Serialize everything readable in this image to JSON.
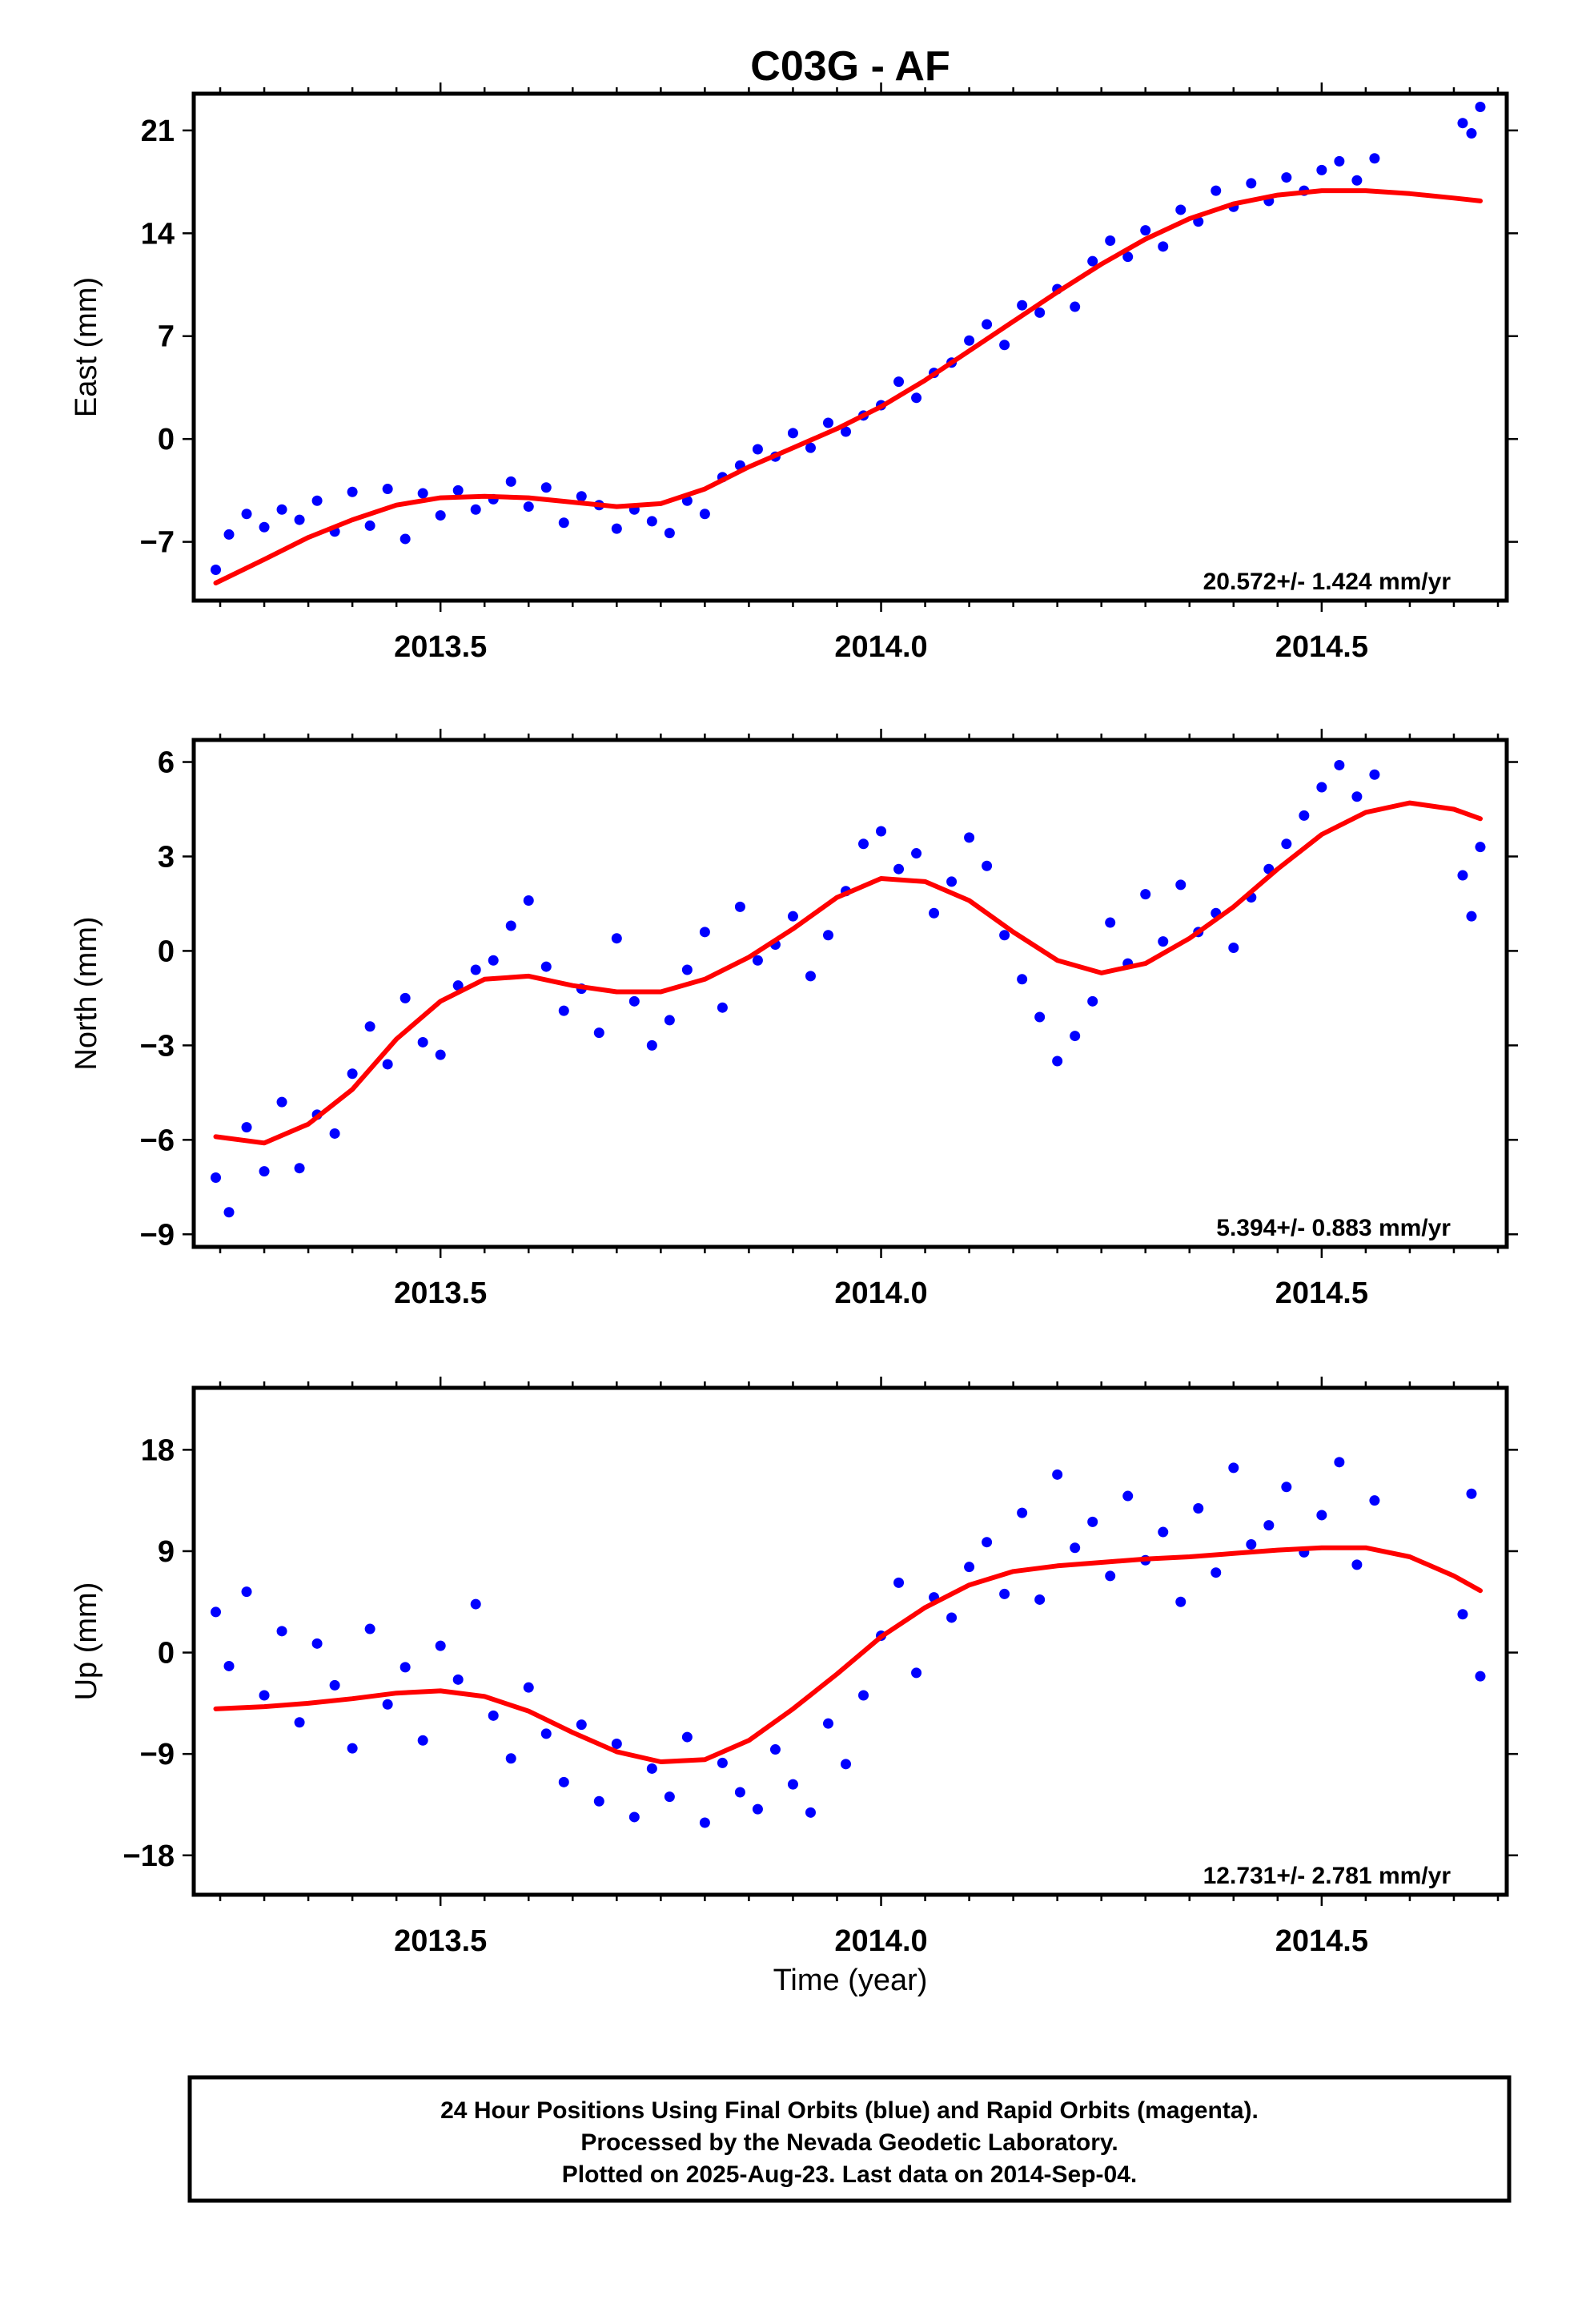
{
  "title": "C03G - AF",
  "caption": {
    "lines": [
      "24 Hour Positions Using Final Orbits (blue) and Rapid Orbits (magenta).",
      "Processed by the Nevada Geodetic Laboratory.",
      "Plotted on 2025-Aug-23. Last data on 2014-Sep-04."
    ]
  },
  "colors": {
    "points": "#0000ff",
    "fit": "#ff0000",
    "frame": "#000000"
  },
  "chart_data": [
    {
      "type": "scatter",
      "ylabel": "East (mm)",
      "xlabel": "",
      "xlim": [
        2013.22,
        2014.71
      ],
      "ylim": [
        -11.0,
        23.5
      ],
      "xticks": [
        2013.5,
        2014.0,
        2014.5
      ],
      "xtick_labels": [
        "2013.5",
        "2014.0",
        "2014.5"
      ],
      "yticks": [
        -7,
        0,
        7,
        14,
        21
      ],
      "ytick_labels": [
        "−7",
        "0",
        "7",
        "14",
        "21"
      ],
      "rate": "20.572+/- 1.424 mm/yr",
      "fit": {
        "x": [
          2013.245,
          2013.3,
          2013.35,
          2013.4,
          2013.45,
          2013.5,
          2013.55,
          2013.6,
          2013.65,
          2013.7,
          2013.75,
          2013.8,
          2013.85,
          2013.9,
          2013.95,
          2014.0,
          2014.05,
          2014.1,
          2014.15,
          2014.2,
          2014.25,
          2014.3,
          2014.35,
          2014.4,
          2014.45,
          2014.5,
          2014.55,
          2014.6,
          2014.65,
          2014.68
        ],
        "y": [
          -9.8,
          -8.2,
          -6.7,
          -5.5,
          -4.5,
          -4.0,
          -3.9,
          -4.0,
          -4.3,
          -4.6,
          -4.4,
          -3.4,
          -1.9,
          -0.6,
          0.7,
          2.2,
          4.0,
          6.0,
          8.0,
          10.0,
          11.9,
          13.6,
          15.0,
          16.0,
          16.6,
          16.9,
          16.9,
          16.7,
          16.4,
          16.2
        ]
      },
      "series": [
        {
          "x": [
            2013.245,
            2013.26,
            2013.28,
            2013.3,
            2013.32,
            2013.34,
            2013.36,
            2013.38,
            2013.4,
            2013.42,
            2013.44,
            2013.46,
            2013.48,
            2013.5,
            2013.52,
            2013.54,
            2013.56,
            2013.58,
            2013.6,
            2013.62,
            2013.64,
            2013.66,
            2013.68,
            2013.7,
            2013.72,
            2013.74,
            2013.76,
            2013.78,
            2013.8,
            2013.82,
            2013.84,
            2013.86,
            2013.88,
            2013.9,
            2013.92,
            2013.94,
            2013.96,
            2013.98,
            2014.0,
            2014.02,
            2014.04,
            2014.06,
            2014.08,
            2014.1,
            2014.12,
            2014.14,
            2014.16,
            2014.18,
            2014.2,
            2014.22,
            2014.24,
            2014.26,
            2014.28,
            2014.3,
            2014.32,
            2014.34,
            2014.36,
            2014.38,
            2014.4,
            2014.42,
            2014.44,
            2014.46,
            2014.48,
            2014.5,
            2014.52,
            2014.54,
            2014.56,
            2014.66,
            2014.67,
            2014.68
          ],
          "y": [
            -8.9,
            -6.5,
            -5.1,
            -6.0,
            -4.8,
            -5.5,
            -4.2,
            -6.3,
            -3.6,
            -5.9,
            -3.4,
            -6.8,
            -3.7,
            -5.2,
            -3.5,
            -4.8,
            -4.1,
            -2.9,
            -4.6,
            -3.3,
            -5.7,
            -3.9,
            -4.5,
            -6.1,
            -4.8,
            -5.6,
            -6.4,
            -4.2,
            -5.1,
            -2.6,
            -1.8,
            -0.7,
            -1.2,
            0.4,
            -0.6,
            1.1,
            0.5,
            1.6,
            2.3,
            3.9,
            2.8,
            4.5,
            5.2,
            6.7,
            7.8,
            6.4,
            9.1,
            8.6,
            10.2,
            9.0,
            12.1,
            13.5,
            12.4,
            14.2,
            13.1,
            15.6,
            14.8,
            16.9,
            15.8,
            17.4,
            16.2,
            17.8,
            16.9,
            18.3,
            18.9,
            17.6,
            19.1,
            21.5,
            20.8,
            22.6
          ]
        }
      ]
    },
    {
      "type": "scatter",
      "ylabel": "North (mm)",
      "xlabel": "",
      "xlim": [
        2013.22,
        2014.71
      ],
      "ylim": [
        -9.4,
        6.7
      ],
      "xticks": [
        2013.5,
        2014.0,
        2014.5
      ],
      "xtick_labels": [
        "2013.5",
        "2014.0",
        "2014.5"
      ],
      "yticks": [
        -9,
        -6,
        -3,
        0,
        3,
        6
      ],
      "ytick_labels": [
        "−9",
        "−6",
        "−3",
        "0",
        "3",
        "6"
      ],
      "rate": "5.394+/- 0.883 mm/yr",
      "fit": {
        "x": [
          2013.245,
          2013.3,
          2013.35,
          2013.4,
          2013.45,
          2013.5,
          2013.55,
          2013.6,
          2013.65,
          2013.7,
          2013.75,
          2013.8,
          2013.85,
          2013.9,
          2013.95,
          2014.0,
          2014.05,
          2014.1,
          2014.15,
          2014.2,
          2014.25,
          2014.3,
          2014.35,
          2014.4,
          2014.45,
          2014.5,
          2014.55,
          2014.6,
          2014.65,
          2014.68
        ],
        "y": [
          -5.9,
          -6.1,
          -5.5,
          -4.4,
          -2.8,
          -1.6,
          -0.9,
          -0.8,
          -1.1,
          -1.3,
          -1.3,
          -0.9,
          -0.2,
          0.7,
          1.7,
          2.3,
          2.2,
          1.6,
          0.6,
          -0.3,
          -0.7,
          -0.4,
          0.4,
          1.4,
          2.6,
          3.7,
          4.4,
          4.7,
          4.5,
          4.2
        ]
      },
      "series": [
        {
          "x": [
            2013.245,
            2013.26,
            2013.28,
            2013.3,
            2013.32,
            2013.34,
            2013.36,
            2013.38,
            2013.4,
            2013.42,
            2013.44,
            2013.46,
            2013.48,
            2013.5,
            2013.52,
            2013.54,
            2013.56,
            2013.58,
            2013.6,
            2013.62,
            2013.64,
            2013.66,
            2013.68,
            2013.7,
            2013.72,
            2013.74,
            2013.76,
            2013.78,
            2013.8,
            2013.82,
            2013.84,
            2013.86,
            2013.88,
            2013.9,
            2013.92,
            2013.94,
            2013.96,
            2013.98,
            2014.0,
            2014.02,
            2014.04,
            2014.06,
            2014.08,
            2014.1,
            2014.12,
            2014.14,
            2014.16,
            2014.18,
            2014.2,
            2014.22,
            2014.24,
            2014.26,
            2014.28,
            2014.3,
            2014.32,
            2014.34,
            2014.36,
            2014.38,
            2014.4,
            2014.42,
            2014.44,
            2014.46,
            2014.48,
            2014.5,
            2014.52,
            2014.54,
            2014.56,
            2014.66,
            2014.67,
            2014.68
          ],
          "y": [
            -7.2,
            -8.3,
            -5.6,
            -7.0,
            -4.8,
            -6.9,
            -5.2,
            -5.8,
            -3.9,
            -2.4,
            -3.6,
            -1.5,
            -2.9,
            -3.3,
            -1.1,
            -0.6,
            -0.3,
            0.8,
            1.6,
            -0.5,
            -1.9,
            -1.2,
            -2.6,
            0.4,
            -1.6,
            -3.0,
            -2.2,
            -0.6,
            0.6,
            -1.8,
            1.4,
            -0.3,
            0.2,
            1.1,
            -0.8,
            0.5,
            1.9,
            3.4,
            3.8,
            2.6,
            3.1,
            1.2,
            2.2,
            3.6,
            2.7,
            0.5,
            -0.9,
            -2.1,
            -3.5,
            -2.7,
            -1.6,
            0.9,
            -0.4,
            1.8,
            0.3,
            2.1,
            0.6,
            1.2,
            0.1,
            1.7,
            2.6,
            3.4,
            4.3,
            5.2,
            5.9,
            4.9,
            5.6,
            2.4,
            1.1,
            3.3
          ]
        }
      ]
    },
    {
      "type": "scatter",
      "ylabel": "Up (mm)",
      "xlabel": "Time (year)",
      "xlim": [
        2013.22,
        2014.71
      ],
      "ylim": [
        -21.5,
        23.5
      ],
      "xticks": [
        2013.5,
        2014.0,
        2014.5
      ],
      "xtick_labels": [
        "2013.5",
        "2014.0",
        "2014.5"
      ],
      "yticks": [
        -18,
        -9,
        0,
        9,
        18
      ],
      "ytick_labels": [
        "−18",
        "−9",
        "0",
        "9",
        "18"
      ],
      "rate": "12.731+/- 2.781 mm/yr",
      "fit": {
        "x": [
          2013.245,
          2013.3,
          2013.35,
          2013.4,
          2013.45,
          2013.5,
          2013.55,
          2013.6,
          2013.65,
          2013.7,
          2013.75,
          2013.8,
          2013.85,
          2013.9,
          2013.95,
          2014.0,
          2014.05,
          2014.1,
          2014.15,
          2014.2,
          2014.25,
          2014.3,
          2014.35,
          2014.4,
          2014.45,
          2014.5,
          2014.55,
          2014.6,
          2014.65,
          2014.68
        ],
        "y": [
          -5.0,
          -4.8,
          -4.5,
          -4.1,
          -3.6,
          -3.4,
          -3.9,
          -5.2,
          -7.1,
          -8.8,
          -9.7,
          -9.5,
          -7.8,
          -5.0,
          -1.9,
          1.4,
          4.0,
          6.0,
          7.2,
          7.7,
          8.0,
          8.3,
          8.5,
          8.8,
          9.1,
          9.3,
          9.3,
          8.5,
          6.8,
          5.5
        ]
      },
      "series": [
        {
          "x": [
            2013.245,
            2013.26,
            2013.28,
            2013.3,
            2013.32,
            2013.34,
            2013.36,
            2013.38,
            2013.4,
            2013.42,
            2013.44,
            2013.46,
            2013.48,
            2013.5,
            2013.52,
            2013.54,
            2013.56,
            2013.58,
            2013.6,
            2013.62,
            2013.64,
            2013.66,
            2013.68,
            2013.7,
            2013.72,
            2013.74,
            2013.76,
            2013.78,
            2013.8,
            2013.82,
            2013.84,
            2013.86,
            2013.88,
            2013.9,
            2013.92,
            2013.94,
            2013.96,
            2013.98,
            2014.0,
            2014.02,
            2014.04,
            2014.06,
            2014.08,
            2014.1,
            2014.12,
            2014.14,
            2014.16,
            2014.18,
            2014.2,
            2014.22,
            2014.24,
            2014.26,
            2014.28,
            2014.3,
            2014.32,
            2014.34,
            2014.36,
            2014.38,
            2014.4,
            2014.42,
            2014.44,
            2014.46,
            2014.48,
            2014.5,
            2014.52,
            2014.54,
            2014.56,
            2014.66,
            2014.67,
            2014.68
          ],
          "y": [
            3.6,
            -1.2,
            5.4,
            -3.8,
            1.9,
            -6.2,
            0.8,
            -2.9,
            -8.5,
            2.1,
            -4.6,
            -1.3,
            -7.8,
            0.6,
            -2.4,
            4.3,
            -5.6,
            -9.4,
            -3.1,
            -7.2,
            -11.5,
            -6.4,
            -13.2,
            -8.1,
            -14.6,
            -10.3,
            -12.8,
            -7.5,
            -15.1,
            -9.8,
            -12.4,
            -13.9,
            -8.6,
            -11.7,
            -14.2,
            -6.3,
            -9.9,
            -3.8,
            1.5,
            6.2,
            -1.8,
            4.9,
            3.1,
            7.6,
            9.8,
            5.2,
            12.4,
            4.7,
            15.8,
            9.3,
            11.6,
            6.8,
            13.9,
            8.2,
            10.7,
            4.5,
            12.8,
            7.1,
            16.4,
            9.6,
            11.3,
            14.7,
            8.9,
            12.2,
            16.9,
            7.8,
            13.5,
            3.4,
            14.1,
            -2.1
          ]
        }
      ]
    }
  ]
}
